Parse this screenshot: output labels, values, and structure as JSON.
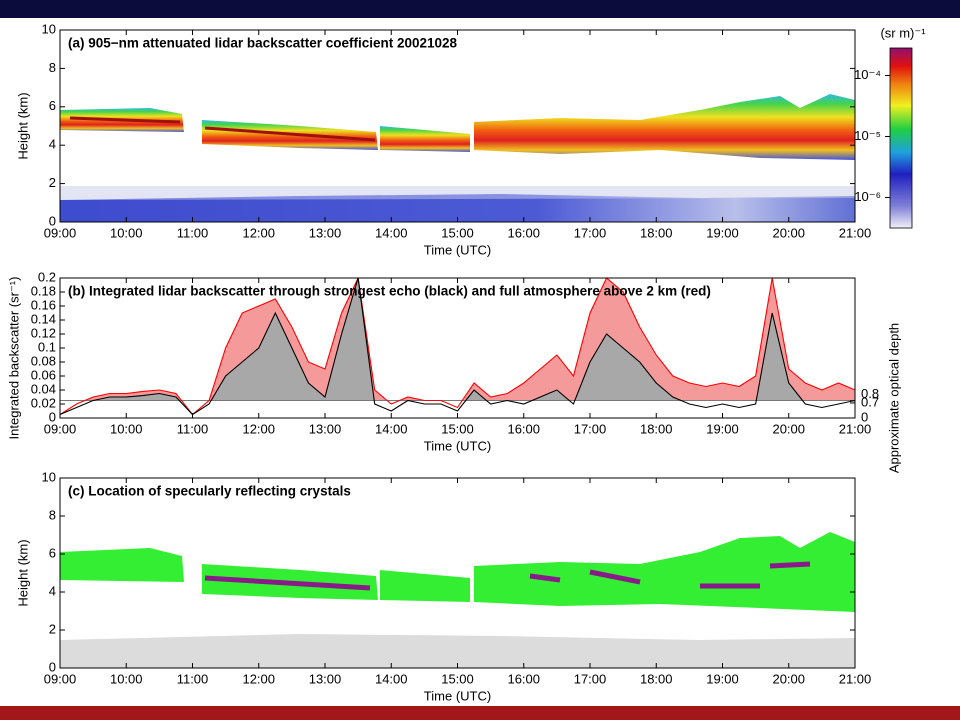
{
  "chart_data": [
    {
      "type": "heatmap",
      "title": "(a) 905−nm attenuated lidar backscatter coefficient 20021028",
      "xlabel": "Time (UTC)",
      "ylabel": "Height (km)",
      "xlim": [
        9,
        21
      ],
      "xticks": [
        {
          "value": 9,
          "label": "09:00"
        },
        {
          "value": 10,
          "label": "10:00"
        },
        {
          "value": 11,
          "label": "11:00"
        },
        {
          "value": 12,
          "label": "12:00"
        },
        {
          "value": 13,
          "label": "13:00"
        },
        {
          "value": 14,
          "label": "14:00"
        },
        {
          "value": 15,
          "label": "15:00"
        },
        {
          "value": 16,
          "label": "16:00"
        },
        {
          "value": 17,
          "label": "17:00"
        },
        {
          "value": 18,
          "label": "18:00"
        },
        {
          "value": 19,
          "label": "19:00"
        },
        {
          "value": 20,
          "label": "20:00"
        },
        {
          "value": 21,
          "label": "21:00"
        }
      ],
      "ylim": [
        0,
        10
      ],
      "yticks": [
        0,
        2,
        4,
        6,
        8,
        10
      ],
      "colorbar": {
        "label": "(sr m)⁻¹",
        "lim": [
          -6.5,
          -3.55
        ],
        "ticks": [
          {
            "value": -4,
            "label": "10⁻⁴"
          },
          {
            "value": -5,
            "label": "10⁻⁵"
          },
          {
            "value": -6,
            "label": "10⁻⁶"
          }
        ]
      }
    },
    {
      "type": "line",
      "title": "(b) Integrated lidar backscatter through strongest echo (black) and full atmosphere above 2 km (red)",
      "xlabel": "Time (UTC)",
      "ylabel": "Integrated backscatter (sr⁻¹)",
      "y2label": "Approximate optical depth",
      "xlim": [
        9,
        21
      ],
      "xticks": [
        {
          "value": 9,
          "label": "09:00"
        },
        {
          "value": 10,
          "label": "10:00"
        },
        {
          "value": 11,
          "label": "11:00"
        },
        {
          "value": 12,
          "label": "12:00"
        },
        {
          "value": 13,
          "label": "13:00"
        },
        {
          "value": 14,
          "label": "14:00"
        },
        {
          "value": 15,
          "label": "15:00"
        },
        {
          "value": 16,
          "label": "16:00"
        },
        {
          "value": 17,
          "label": "17:00"
        },
        {
          "value": 18,
          "label": "18:00"
        },
        {
          "value": 19,
          "label": "19:00"
        },
        {
          "value": 20,
          "label": "20:00"
        },
        {
          "value": 21,
          "label": "21:00"
        }
      ],
      "ylim": [
        0,
        0.2
      ],
      "yticks": [
        0,
        0.02,
        0.04,
        0.06,
        0.08,
        0.1,
        0.12,
        0.14,
        0.16,
        0.18,
        0.2
      ],
      "y2lim": [
        0,
        6.5
      ],
      "y2ticks": [
        0,
        0.7,
        0.8
      ],
      "threshold": 0.025,
      "x": [
        9,
        9.25,
        9.5,
        9.75,
        10,
        10.25,
        10.5,
        10.75,
        11,
        11.25,
        11.5,
        11.75,
        12,
        12.25,
        12.5,
        12.75,
        13,
        13.25,
        13.5,
        13.75,
        14,
        14.25,
        14.5,
        14.75,
        15,
        15.25,
        15.5,
        15.75,
        16,
        16.25,
        16.5,
        16.75,
        17,
        17.25,
        17.5,
        17.75,
        18,
        18.25,
        18.5,
        18.75,
        19,
        19.25,
        19.5,
        19.75,
        20,
        20.25,
        20.5,
        20.75,
        21
      ],
      "series": [
        {
          "color": "#ff0000",
          "fill": "#f59a9a",
          "values": [
            0.005,
            0.02,
            0.03,
            0.035,
            0.035,
            0.038,
            0.04,
            0.035,
            0.005,
            0.025,
            0.1,
            0.15,
            0.16,
            0.17,
            0.13,
            0.08,
            0.07,
            0.15,
            0.2,
            0.04,
            0.02,
            0.03,
            0.025,
            0.025,
            0.015,
            0.05,
            0.03,
            0.035,
            0.05,
            0.07,
            0.09,
            0.06,
            0.15,
            0.2,
            0.18,
            0.13,
            0.09,
            0.06,
            0.05,
            0.045,
            0.05,
            0.045,
            0.06,
            0.2,
            0.07,
            0.05,
            0.04,
            0.05,
            0.04
          ]
        },
        {
          "color": "#000000",
          "fill": "#a8a8a8",
          "values": [
            0.005,
            0.015,
            0.025,
            0.03,
            0.03,
            0.032,
            0.035,
            0.03,
            0.005,
            0.02,
            0.06,
            0.08,
            0.1,
            0.15,
            0.1,
            0.05,
            0.03,
            0.12,
            0.2,
            0.02,
            0.01,
            0.025,
            0.02,
            0.02,
            0.01,
            0.04,
            0.02,
            0.025,
            0.02,
            0.03,
            0.04,
            0.02,
            0.08,
            0.12,
            0.1,
            0.08,
            0.05,
            0.03,
            0.02,
            0.015,
            0.02,
            0.015,
            0.02,
            0.15,
            0.05,
            0.02,
            0.015,
            0.02,
            0.025
          ]
        }
      ]
    },
    {
      "type": "heatmap",
      "title": "(c) Location of specularly reflecting crystals",
      "xlabel": "Time (UTC)",
      "ylabel": "Height (km)",
      "xlim": [
        9,
        21
      ],
      "xticks": [
        {
          "value": 9,
          "label": "09:00"
        },
        {
          "value": 10,
          "label": "10:00"
        },
        {
          "value": 11,
          "label": "11:00"
        },
        {
          "value": 12,
          "label": "12:00"
        },
        {
          "value": 13,
          "label": "13:00"
        },
        {
          "value": 14,
          "label": "14:00"
        },
        {
          "value": 15,
          "label": "15:00"
        },
        {
          "value": 16,
          "label": "16:00"
        },
        {
          "value": 17,
          "label": "17:00"
        },
        {
          "value": 18,
          "label": "18:00"
        },
        {
          "value": 19,
          "label": "19:00"
        },
        {
          "value": 20,
          "label": "20:00"
        },
        {
          "value": 21,
          "label": "21:00"
        }
      ],
      "ylim": [
        0,
        10
      ],
      "yticks": [
        0,
        2,
        4,
        6,
        8,
        10
      ]
    }
  ]
}
